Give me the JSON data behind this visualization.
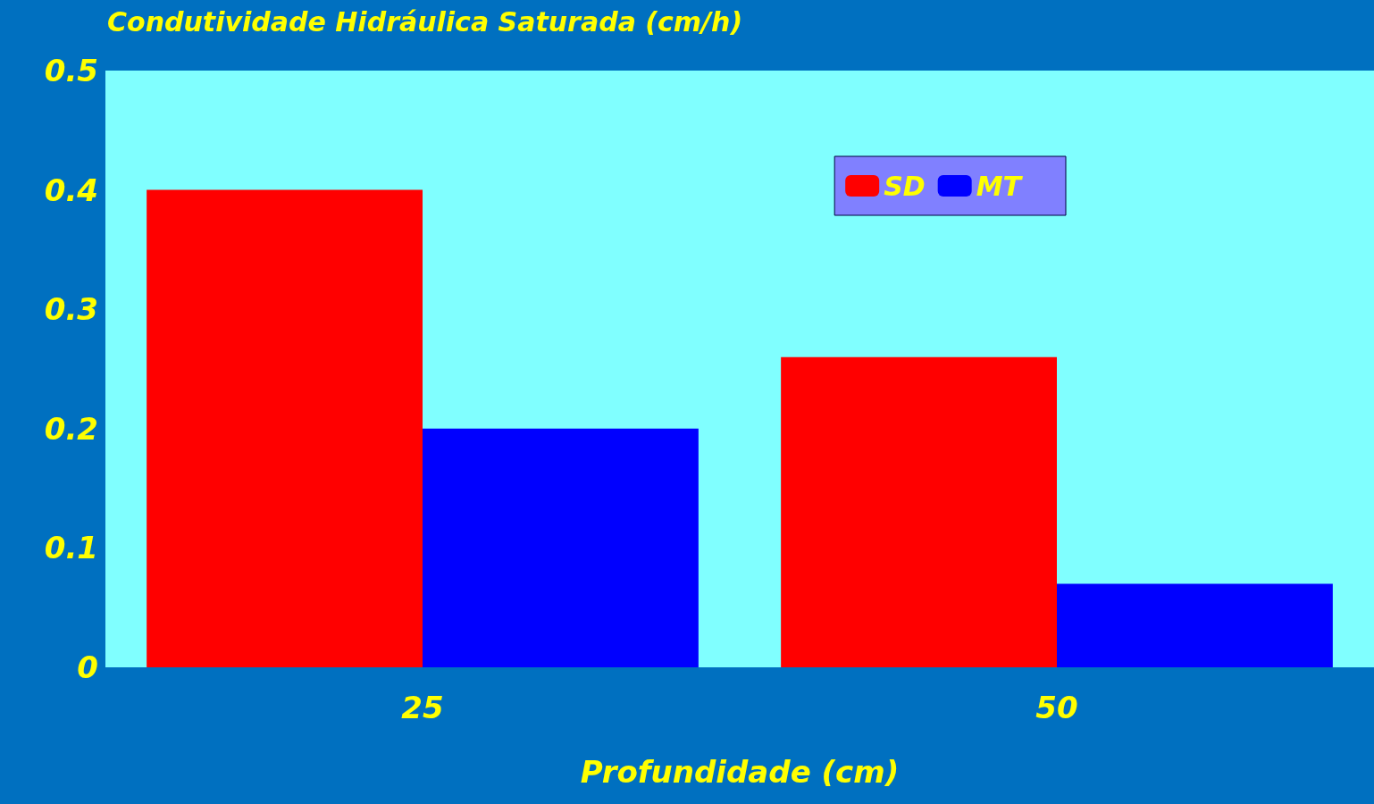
{
  "chart_data": {
    "type": "bar",
    "title": "Condutividade Hidráulica Saturada (cm/h)",
    "xlabel": "Profundidade (cm)",
    "categories": [
      "25",
      "50"
    ],
    "series": [
      {
        "name": "SD",
        "color": "#ff0000",
        "values": [
          0.4,
          0.26
        ]
      },
      {
        "name": "MT",
        "color": "#0000ff",
        "values": [
          0.2,
          0.07
        ]
      }
    ],
    "ylim": [
      0,
      0.5
    ],
    "yticks": [
      0,
      0.1,
      0.2,
      0.3,
      0.4,
      0.5
    ],
    "grid": false,
    "legend": "top right"
  }
}
